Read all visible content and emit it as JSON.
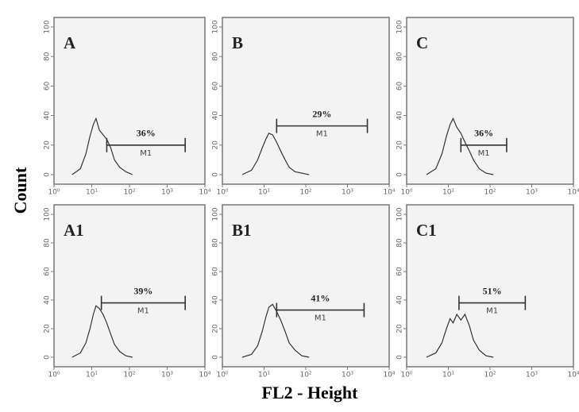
{
  "figure": {
    "xlabel": "FL2 - Height",
    "ylabel": "Count"
  },
  "chart_data": [
    {
      "type": "line",
      "label": "A",
      "log_x": true,
      "color": "#333333",
      "x": [
        3,
        5,
        7,
        9,
        11,
        13,
        16,
        20,
        25,
        32,
        40,
        55,
        80,
        120
      ],
      "values": [
        0,
        4,
        14,
        26,
        34,
        38,
        30,
        27,
        24,
        18,
        10,
        5,
        2,
        0
      ],
      "xlim": [
        1,
        10000
      ],
      "xticks": [
        {
          "value": 1,
          "label": "10⁰"
        },
        {
          "value": 10,
          "label": "10¹"
        },
        {
          "value": 100,
          "label": "10²"
        },
        {
          "value": 1000,
          "label": "10³"
        },
        {
          "value": 10000,
          "label": "10⁴"
        }
      ],
      "ylim": [
        0,
        100
      ],
      "yticks": [
        0,
        20,
        40,
        60,
        80,
        100
      ],
      "gate": {
        "label": "M1",
        "percent": "36%",
        "range": [
          25,
          3000
        ],
        "level": 20
      }
    },
    {
      "type": "line",
      "label": "B",
      "log_x": true,
      "color": "#333333",
      "x": [
        3,
        5,
        7,
        9,
        11,
        13,
        16,
        20,
        25,
        32,
        40,
        55,
        80,
        120
      ],
      "values": [
        0,
        3,
        10,
        18,
        24,
        28,
        27,
        22,
        16,
        10,
        5,
        2,
        1,
        0
      ],
      "xlim": [
        1,
        10000
      ],
      "xticks": [
        {
          "value": 1,
          "label": "10⁰"
        },
        {
          "value": 10,
          "label": "10¹"
        },
        {
          "value": 100,
          "label": "10²"
        },
        {
          "value": 1000,
          "label": "10³"
        },
        {
          "value": 10000,
          "label": "10⁴"
        }
      ],
      "ylim": [
        0,
        100
      ],
      "yticks": [
        0,
        20,
        40,
        60,
        80,
        100
      ],
      "gate": {
        "label": "M1",
        "percent": "29%",
        "range": [
          20,
          3000
        ],
        "level": 33
      }
    },
    {
      "type": "line",
      "label": "C",
      "log_x": true,
      "color": "#333333",
      "x": [
        3,
        5,
        7,
        9,
        11,
        13,
        16,
        20,
        25,
        32,
        40,
        55,
        80,
        120
      ],
      "values": [
        0,
        4,
        14,
        26,
        34,
        38,
        32,
        28,
        22,
        16,
        10,
        4,
        1,
        0
      ],
      "xlim": [
        1,
        10000
      ],
      "xticks": [
        {
          "value": 1,
          "label": "10⁰"
        },
        {
          "value": 10,
          "label": "10¹"
        },
        {
          "value": 100,
          "label": "10²"
        },
        {
          "value": 1000,
          "label": "10³"
        },
        {
          "value": 10000,
          "label": "10⁴"
        }
      ],
      "ylim": [
        0,
        100
      ],
      "yticks": [
        0,
        20,
        40,
        60,
        80,
        100
      ],
      "gate": {
        "label": "M1",
        "percent": "36%",
        "range": [
          20,
          250
        ],
        "level": 20
      }
    },
    {
      "type": "line",
      "label": "A1",
      "log_x": true,
      "color": "#333333",
      "x": [
        3,
        5,
        7,
        9,
        11,
        13,
        16,
        20,
        25,
        32,
        40,
        55,
        80,
        120
      ],
      "values": [
        0,
        3,
        10,
        20,
        30,
        36,
        34,
        30,
        24,
        16,
        9,
        4,
        1,
        0
      ],
      "xlim": [
        1,
        10000
      ],
      "xticks": [
        {
          "value": 1,
          "label": "10⁰"
        },
        {
          "value": 10,
          "label": "10¹"
        },
        {
          "value": 100,
          "label": "10²"
        },
        {
          "value": 1000,
          "label": "10³"
        },
        {
          "value": 10000,
          "label": "10⁴"
        }
      ],
      "ylim": [
        0,
        100
      ],
      "yticks": [
        0,
        20,
        40,
        60,
        80,
        100
      ],
      "gate": {
        "label": "M1",
        "percent": "39%",
        "range": [
          18,
          3000
        ],
        "level": 38
      }
    },
    {
      "type": "line",
      "label": "B1",
      "log_x": true,
      "color": "#333333",
      "x": [
        3,
        5,
        7,
        9,
        11,
        13,
        16,
        20,
        25,
        32,
        40,
        55,
        80,
        120
      ],
      "values": [
        0,
        2,
        8,
        18,
        28,
        35,
        37,
        32,
        26,
        18,
        10,
        5,
        1,
        0
      ],
      "xlim": [
        1,
        10000
      ],
      "xticks": [
        {
          "value": 1,
          "label": "10⁰"
        },
        {
          "value": 10,
          "label": "10¹"
        },
        {
          "value": 100,
          "label": "10²"
        },
        {
          "value": 1000,
          "label": "10³"
        },
        {
          "value": 10000,
          "label": "10⁴"
        }
      ],
      "ylim": [
        0,
        100
      ],
      "yticks": [
        0,
        20,
        40,
        60,
        80,
        100
      ],
      "gate": {
        "label": "M1",
        "percent": "41%",
        "range": [
          20,
          2500
        ],
        "level": 33
      }
    },
    {
      "type": "line",
      "label": "C1",
      "log_x": true,
      "color": "#333333",
      "x": [
        3,
        5,
        7,
        9,
        11,
        13,
        16,
        20,
        25,
        32,
        40,
        55,
        80,
        120
      ],
      "values": [
        0,
        3,
        10,
        20,
        27,
        24,
        30,
        26,
        30,
        22,
        12,
        5,
        1,
        0
      ],
      "xlim": [
        1,
        10000
      ],
      "xticks": [
        {
          "value": 1,
          "label": "10⁰"
        },
        {
          "value": 10,
          "label": "10¹"
        },
        {
          "value": 100,
          "label": "10²"
        },
        {
          "value": 1000,
          "label": "10³"
        },
        {
          "value": 10000,
          "label": "10⁴"
        }
      ],
      "ylim": [
        0,
        100
      ],
      "yticks": [
        0,
        20,
        40,
        60,
        80,
        100
      ],
      "gate": {
        "label": "M1",
        "percent": "51%",
        "range": [
          18,
          700
        ],
        "level": 38
      }
    }
  ]
}
